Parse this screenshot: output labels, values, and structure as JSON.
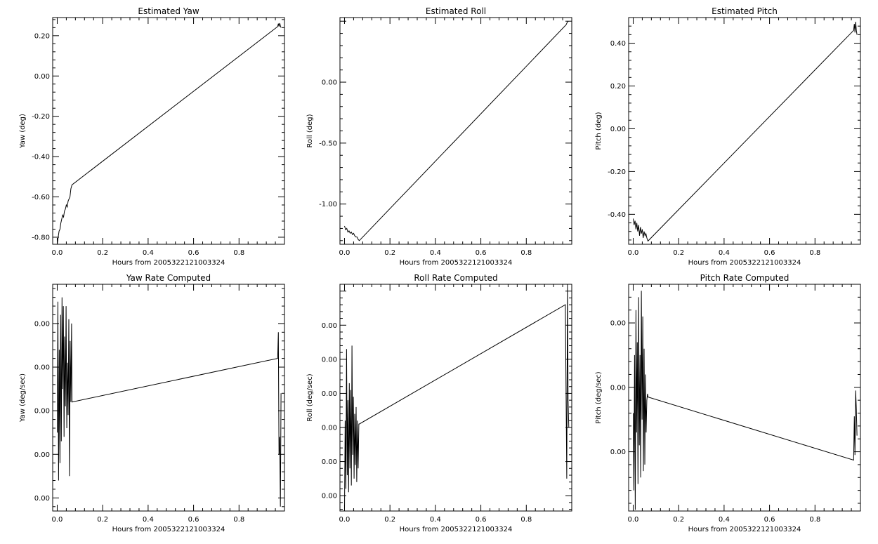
{
  "chart_data": [
    {
      "type": "line",
      "title": "Estimated Yaw",
      "xlabel": "Hours from 2005322121003324",
      "ylabel": "Yaw (deg)",
      "xlim": [
        -0.02,
        1.0
      ],
      "ylim": [
        -0.835,
        0.29
      ],
      "xticks": [
        0.0,
        0.2,
        0.4,
        0.6,
        0.8
      ],
      "xtick_labels": [
        "0.0",
        "0.2",
        "0.4",
        "0.6",
        "0.8"
      ],
      "yticks": [
        -0.8,
        -0.6,
        -0.4,
        -0.2,
        0.0,
        0.2
      ],
      "ytick_labels": [
        "-0.80",
        "-0.60",
        "-0.40",
        "-0.20",
        "0.00",
        "0.20"
      ],
      "series": [
        {
          "x": [
            0.0,
            0.004,
            0.008,
            0.012,
            0.016,
            0.02,
            0.024,
            0.028,
            0.032,
            0.036,
            0.04,
            0.044,
            0.048,
            0.052,
            0.056,
            0.06,
            0.065,
            0.97,
            0.973,
            0.976,
            0.979,
            0.982,
            0.985
          ],
          "y": [
            -0.835,
            -0.8,
            -0.77,
            -0.76,
            -0.73,
            -0.71,
            -0.69,
            -0.7,
            -0.67,
            -0.66,
            -0.64,
            -0.65,
            -0.62,
            -0.61,
            -0.6,
            -0.56,
            -0.54,
            0.245,
            0.26,
            0.245,
            0.262,
            0.25,
            0.24
          ]
        }
      ]
    },
    {
      "type": "line",
      "title": "Estimated Roll",
      "xlabel": "Hours from 2005322121003324",
      "ylabel": "Roll (deg)",
      "xlim": [
        -0.02,
        1.0
      ],
      "ylim": [
        -1.33,
        0.53
      ],
      "xticks": [
        0.0,
        0.2,
        0.4,
        0.6,
        0.8
      ],
      "xtick_labels": [
        "0.0",
        "0.2",
        "0.4",
        "0.6",
        "0.8"
      ],
      "yticks": [
        -1.0,
        -0.5,
        0.0
      ],
      "ytick_labels": [
        "-1.00",
        "-0.50",
        "0.00"
      ],
      "series": [
        {
          "x": [
            0.0,
            0.005,
            0.01,
            0.015,
            0.02,
            0.025,
            0.03,
            0.035,
            0.04,
            0.045,
            0.05,
            0.055,
            0.06,
            0.065,
            0.975,
            0.98,
            0.985
          ],
          "y": [
            -1.18,
            -1.21,
            -1.2,
            -1.23,
            -1.22,
            -1.24,
            -1.23,
            -1.25,
            -1.24,
            -1.26,
            -1.27,
            -1.27,
            -1.29,
            -1.3,
            0.47,
            0.49,
            0.5
          ]
        }
      ]
    },
    {
      "type": "line",
      "title": "Estimated Pitch",
      "xlabel": "Hours from 2005322121003324",
      "ylabel": "Pitch (deg)",
      "xlim": [
        -0.02,
        1.0
      ],
      "ylim": [
        -0.54,
        0.52
      ],
      "xticks": [
        0.0,
        0.2,
        0.4,
        0.6,
        0.8
      ],
      "xtick_labels": [
        "0.0",
        "0.2",
        "0.4",
        "0.6",
        "0.8"
      ],
      "yticks": [
        -0.4,
        -0.2,
        0.0,
        0.2,
        0.4
      ],
      "ytick_labels": [
        "-0.40",
        "-0.20",
        "0.00",
        "0.20",
        "0.40"
      ],
      "series": [
        {
          "x": [
            0.0,
            0.004,
            0.008,
            0.012,
            0.016,
            0.02,
            0.024,
            0.028,
            0.032,
            0.036,
            0.04,
            0.044,
            0.048,
            0.052,
            0.056,
            0.06,
            0.065,
            0.97,
            0.973,
            0.976,
            0.979,
            0.982,
            0.985
          ],
          "y": [
            -0.42,
            -0.45,
            -0.43,
            -0.47,
            -0.44,
            -0.48,
            -0.45,
            -0.5,
            -0.46,
            -0.49,
            -0.47,
            -0.51,
            -0.48,
            -0.5,
            -0.49,
            -0.51,
            -0.525,
            0.46,
            0.49,
            0.45,
            0.5,
            0.46,
            0.44
          ]
        }
      ]
    },
    {
      "type": "line",
      "title": "Yaw Rate Computed",
      "xlabel": "Hours from 2005322121003324",
      "ylabel": "Yaw (deg/sec)",
      "xlim": [
        -0.02,
        1.0
      ],
      "ylim": [
        -0.0003,
        0.0049
      ],
      "xticks": [
        0.0,
        0.2,
        0.4,
        0.6,
        0.8
      ],
      "xtick_labels": [
        "0.0",
        "0.2",
        "0.4",
        "0.6",
        "0.8"
      ],
      "yticks": [
        0.0,
        0.001,
        0.002,
        0.003,
        0.004
      ],
      "ytick_labels": [
        "0.00",
        "0.00",
        "0.00",
        "0.00",
        "0.00"
      ],
      "series": [
        {
          "x": [
            0.0,
            0.003,
            0.006,
            0.009,
            0.012,
            0.015,
            0.018,
            0.021,
            0.024,
            0.027,
            0.03,
            0.033,
            0.036,
            0.039,
            0.042,
            0.045,
            0.048,
            0.051,
            0.054,
            0.057,
            0.06,
            0.063,
            0.065,
            0.97,
            0.973,
            0.976,
            0.979,
            0.982,
            0.985
          ],
          "y": [
            0.0015,
            0.0045,
            0.0004,
            0.0034,
            0.0008,
            0.0042,
            0.0013,
            0.0046,
            0.0025,
            0.0044,
            0.0014,
            0.0037,
            0.0021,
            0.0044,
            0.0016,
            0.0031,
            0.0019,
            0.0041,
            0.0005,
            0.0036,
            0.0022,
            0.004,
            0.0022,
            0.0032,
            0.0038,
            0.001,
            0.0014,
            -0.0002,
            0.0024
          ]
        }
      ]
    },
    {
      "type": "line",
      "title": "Roll Rate Computed",
      "xlabel": "Hours from 2005322121003324",
      "ylabel": "Roll (deg/sec)",
      "xlim": [
        -0.02,
        1.0
      ],
      "ylim": [
        -0.00045,
        0.0062
      ],
      "xticks": [
        0.0,
        0.2,
        0.4,
        0.6,
        0.8
      ],
      "xtick_labels": [
        "0.0",
        "0.2",
        "0.4",
        "0.6",
        "0.8"
      ],
      "yticks": [
        0.0,
        0.001,
        0.002,
        0.003,
        0.004,
        0.005
      ],
      "ytick_labels": [
        "0.00",
        "0.00",
        "0.00",
        "0.00",
        "0.00",
        "0.00"
      ],
      "series": [
        {
          "x": [
            0.0,
            0.003,
            0.006,
            0.009,
            0.012,
            0.015,
            0.018,
            0.021,
            0.024,
            0.027,
            0.03,
            0.033,
            0.036,
            0.039,
            0.042,
            0.045,
            0.048,
            0.051,
            0.054,
            0.057,
            0.06,
            0.063,
            0.065,
            0.972,
            0.975,
            0.978,
            0.981,
            0.984,
            0.987
          ],
          "y": [
            -0.0004,
            0.0022,
            0.0002,
            0.0043,
            0.0006,
            0.0028,
            0.0001,
            0.0033,
            0.0008,
            0.0031,
            0.0003,
            0.0044,
            0.0012,
            0.0029,
            0.0005,
            0.0024,
            0.0009,
            0.0026,
            0.0004,
            0.0022,
            0.0008,
            0.0021,
            0.0021,
            0.0056,
            0.003,
            0.0005,
            0.0062,
            0.0028,
            0.002
          ]
        }
      ]
    },
    {
      "type": "line",
      "title": "Pitch Rate Computed",
      "xlabel": "Hours from 2005322121003324",
      "ylabel": "Pitch (deg/sec)",
      "xlim": [
        -0.02,
        1.0
      ],
      "ylim": [
        -0.00092,
        0.0026
      ],
      "xticks": [
        0.0,
        0.2,
        0.4,
        0.6,
        0.8
      ],
      "xtick_labels": [
        "0.0",
        "0.2",
        "0.4",
        "0.6",
        "0.8"
      ],
      "yticks": [
        0.0,
        0.001,
        0.002
      ],
      "ytick_labels": [
        "0.00",
        "0.00",
        "0.00"
      ],
      "series": [
        {
          "x": [
            0.0,
            0.003,
            0.006,
            0.009,
            0.012,
            0.015,
            0.018,
            0.021,
            0.024,
            0.027,
            0.03,
            0.033,
            0.036,
            0.039,
            0.042,
            0.045,
            0.048,
            0.051,
            0.054,
            0.057,
            0.06,
            0.063,
            0.065,
            0.97,
            0.973,
            0.976,
            0.979,
            0.982,
            0.985
          ],
          "y": [
            0.0006,
            -0.0006,
            0.0015,
            -0.0009,
            0.0022,
            0.0003,
            0.0017,
            -0.0005,
            0.0024,
            0.0001,
            0.0015,
            -0.0004,
            0.0025,
            0.0005,
            0.0021,
            -0.0003,
            0.0016,
            -0.0002,
            0.0012,
            0.0003,
            0.0008,
            0.0009,
            0.00085,
            -0.00013,
            0.00055,
            -5e-05,
            0.00095,
            0.00065,
            0.00025
          ]
        }
      ]
    }
  ]
}
